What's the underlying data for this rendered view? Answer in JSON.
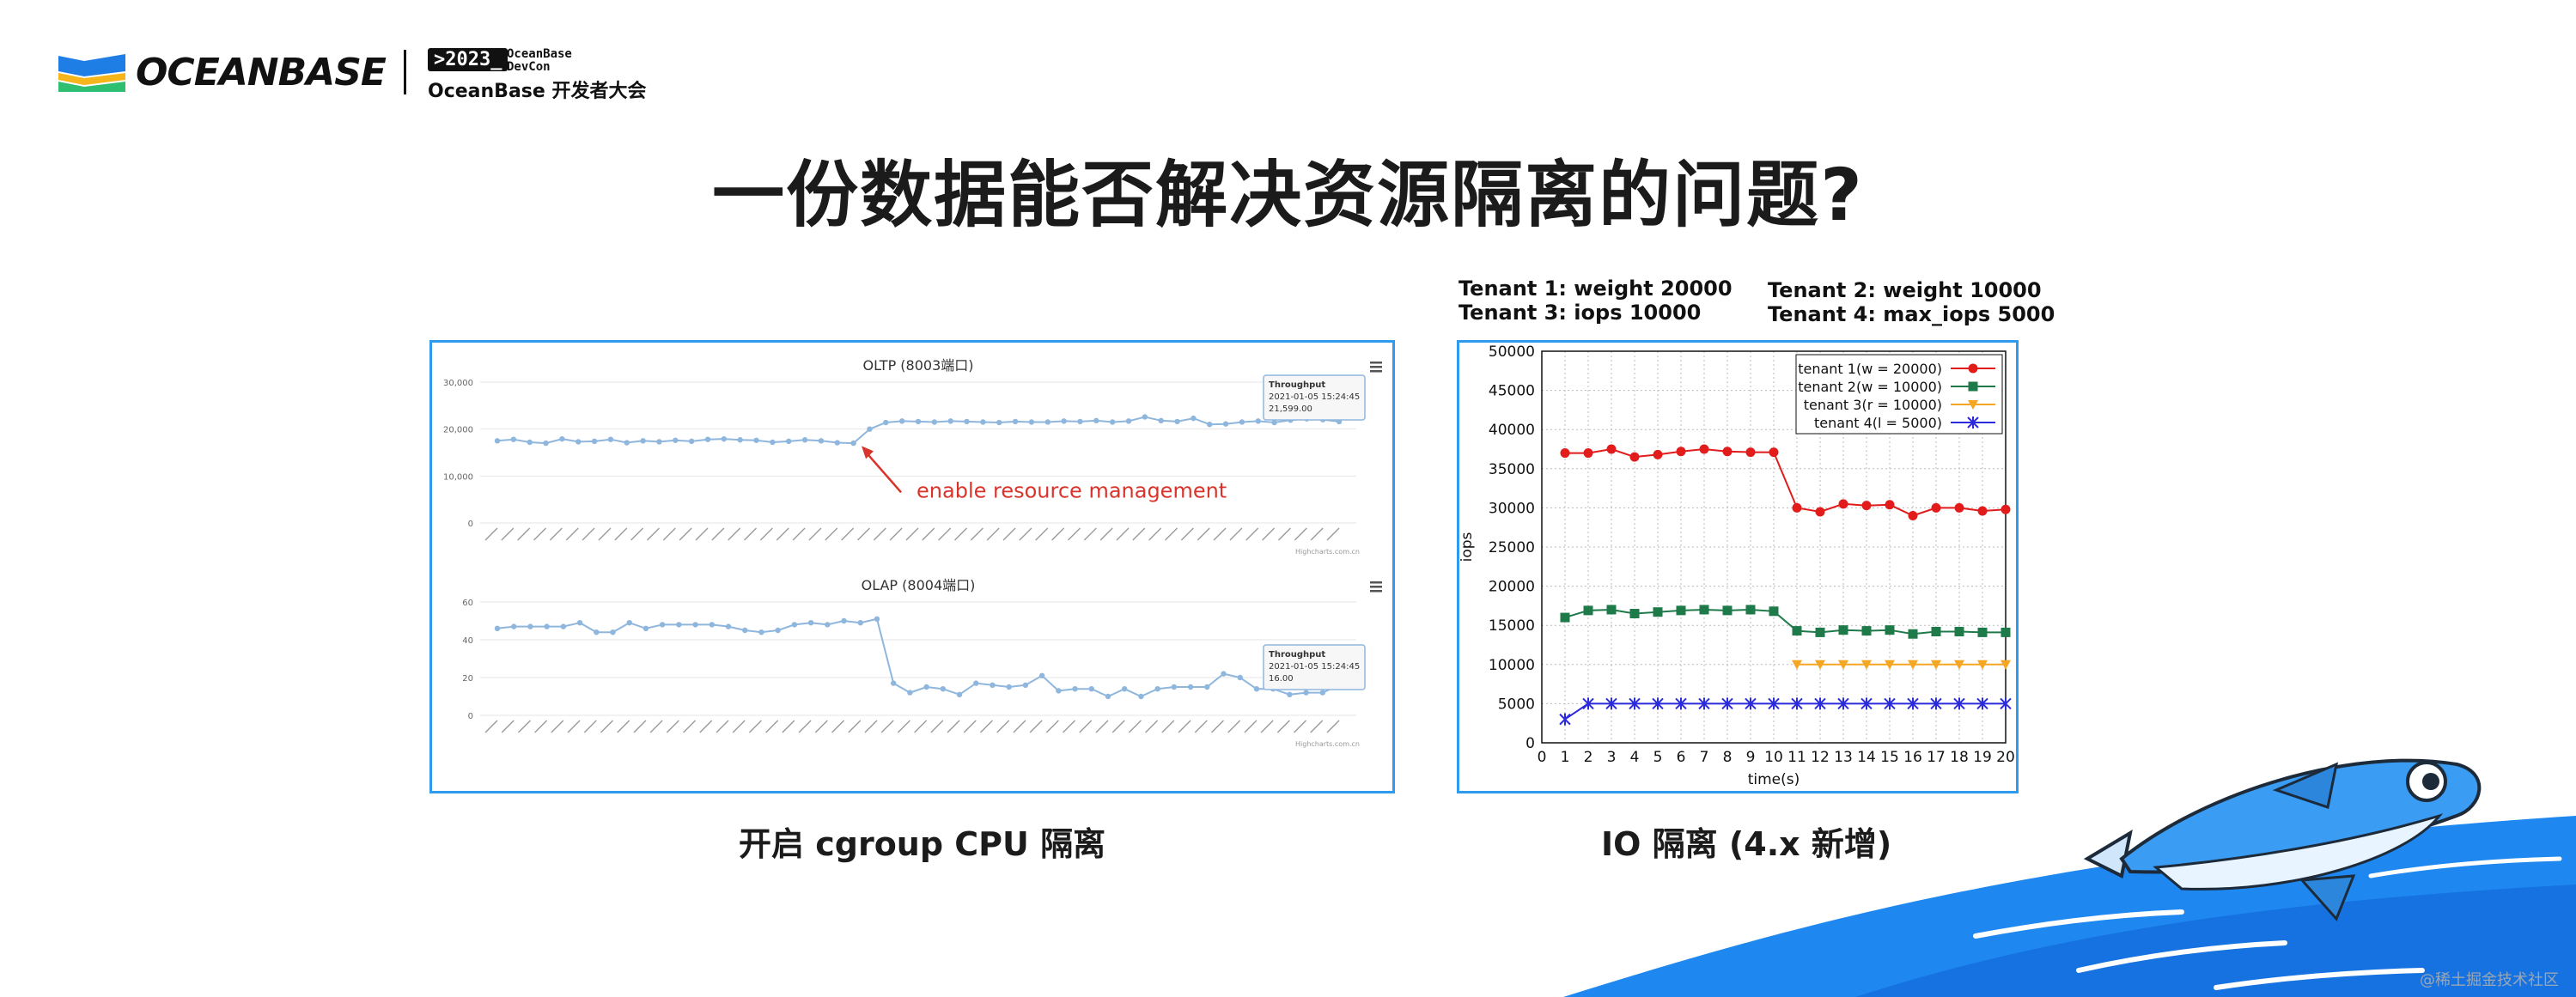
{
  "header": {
    "logo_text": "OCEANBASE",
    "devcon_tag": ">2023_",
    "devcon_small": "OceanBase\nDevCon",
    "devcon_sub": "OceanBase 开发者大会"
  },
  "title": "一份数据能否解决资源隔离的问题?",
  "captions": {
    "left": "开启 cgroup CPU 隔离",
    "right": "IO 隔离 (4.x 新增)"
  },
  "tenant_notes": {
    "line1_left": "Tenant 1:  weight 20000",
    "line2_left": "Tenant 3:  iops 10000",
    "line1_right": "Tenant 2:  weight 10000",
    "line2_right": "Tenant 4:  max_iops 5000"
  },
  "watermark": "@稀土掘金技术社区",
  "colors": {
    "accent_blue": "#2f9bef",
    "series_blue": "#8fb6dd",
    "annotation_red": "#d9342b"
  },
  "chart_data": [
    {
      "type": "line",
      "title": "OLTP (8003端口)",
      "ylim": [
        0,
        30000
      ],
      "yticks": [
        "0",
        "10,000",
        "20,000",
        "30,000"
      ],
      "grid": true,
      "values": [
        17500,
        17800,
        17200,
        17000,
        17900,
        17300,
        17400,
        17800,
        17100,
        17500,
        17300,
        17600,
        17400,
        17800,
        17900,
        17700,
        17600,
        17200,
        17400,
        17700,
        17500,
        17100,
        17000,
        20000,
        21400,
        21700,
        21600,
        21500,
        21700,
        21600,
        21500,
        21400,
        21600,
        21500,
        21500,
        21700,
        21600,
        21800,
        21500,
        21700,
        22600,
        21800,
        21600,
        22300,
        21000,
        21100,
        21500,
        21700,
        21400,
        21900,
        22200,
        22000,
        21599
      ],
      "annotation": "enable resource management",
      "tooltip": {
        "label": "Throughput",
        "time": "2021-01-05 15:24:45",
        "value": "21,599.00"
      },
      "credit": "Highcharts.com.cn"
    },
    {
      "type": "line",
      "title": "OLAP (8004端口)",
      "ylim": [
        0,
        60
      ],
      "yticks": [
        "0",
        "20",
        "40",
        "60"
      ],
      "grid": true,
      "values": [
        46,
        47,
        47,
        47,
        47,
        49,
        44,
        44,
        49,
        46,
        48,
        48,
        48,
        48,
        47,
        45,
        44,
        45,
        48,
        49,
        48,
        50,
        49,
        51,
        17,
        12,
        15,
        14,
        11,
        17,
        16,
        15,
        16,
        21,
        13,
        14,
        14,
        10,
        14,
        10,
        14,
        15,
        15,
        15,
        22,
        20,
        14,
        14,
        11,
        12,
        12,
        16
      ],
      "tooltip": {
        "label": "Throughput",
        "time": "2021-01-05 15:24:45",
        "value": "16.00"
      },
      "credit": "Highcharts.com.cn"
    },
    {
      "type": "line",
      "xlabel": "time(s)",
      "ylabel": "iops",
      "xlim": [
        0,
        20
      ],
      "ylim": [
        0,
        50000
      ],
      "grid": true,
      "legend_placement": "top-right",
      "x": [
        1,
        2,
        3,
        4,
        5,
        6,
        7,
        8,
        9,
        10,
        11,
        12,
        13,
        14,
        15,
        16,
        17,
        18,
        19,
        20
      ],
      "series": [
        {
          "name": "tenant 1(w = 20000)",
          "color": "#e21b1b",
          "marker": "circle",
          "values": [
            37000,
            37000,
            37500,
            36500,
            36800,
            37200,
            37500,
            37200,
            37100,
            37100,
            30000,
            29500,
            30500,
            30300,
            30400,
            29000,
            30000,
            30000,
            29600,
            29800
          ]
        },
        {
          "name": "tenant 2(w = 10000)",
          "color": "#1f7a4a",
          "marker": "square",
          "values": [
            16000,
            16900,
            17000,
            16500,
            16700,
            16900,
            17000,
            16900,
            17000,
            16800,
            14300,
            14100,
            14400,
            14300,
            14400,
            13900,
            14200,
            14200,
            14100,
            14100
          ]
        },
        {
          "name": "tenant 3(r = 10000)",
          "color": "#f5a623",
          "marker": "triangle-down",
          "values": [
            null,
            null,
            null,
            null,
            null,
            null,
            null,
            null,
            null,
            null,
            10000,
            10000,
            10000,
            10000,
            10000,
            10000,
            10000,
            10000,
            10000,
            10000
          ]
        },
        {
          "name": "tenant 4(l = 5000)",
          "color": "#2b2bdc",
          "marker": "star",
          "values": [
            3000,
            5000,
            5000,
            5000,
            5000,
            5000,
            5000,
            5000,
            5000,
            5000,
            5000,
            5000,
            5000,
            5000,
            5000,
            5000,
            5000,
            5000,
            5000,
            5000
          ]
        }
      ]
    }
  ]
}
